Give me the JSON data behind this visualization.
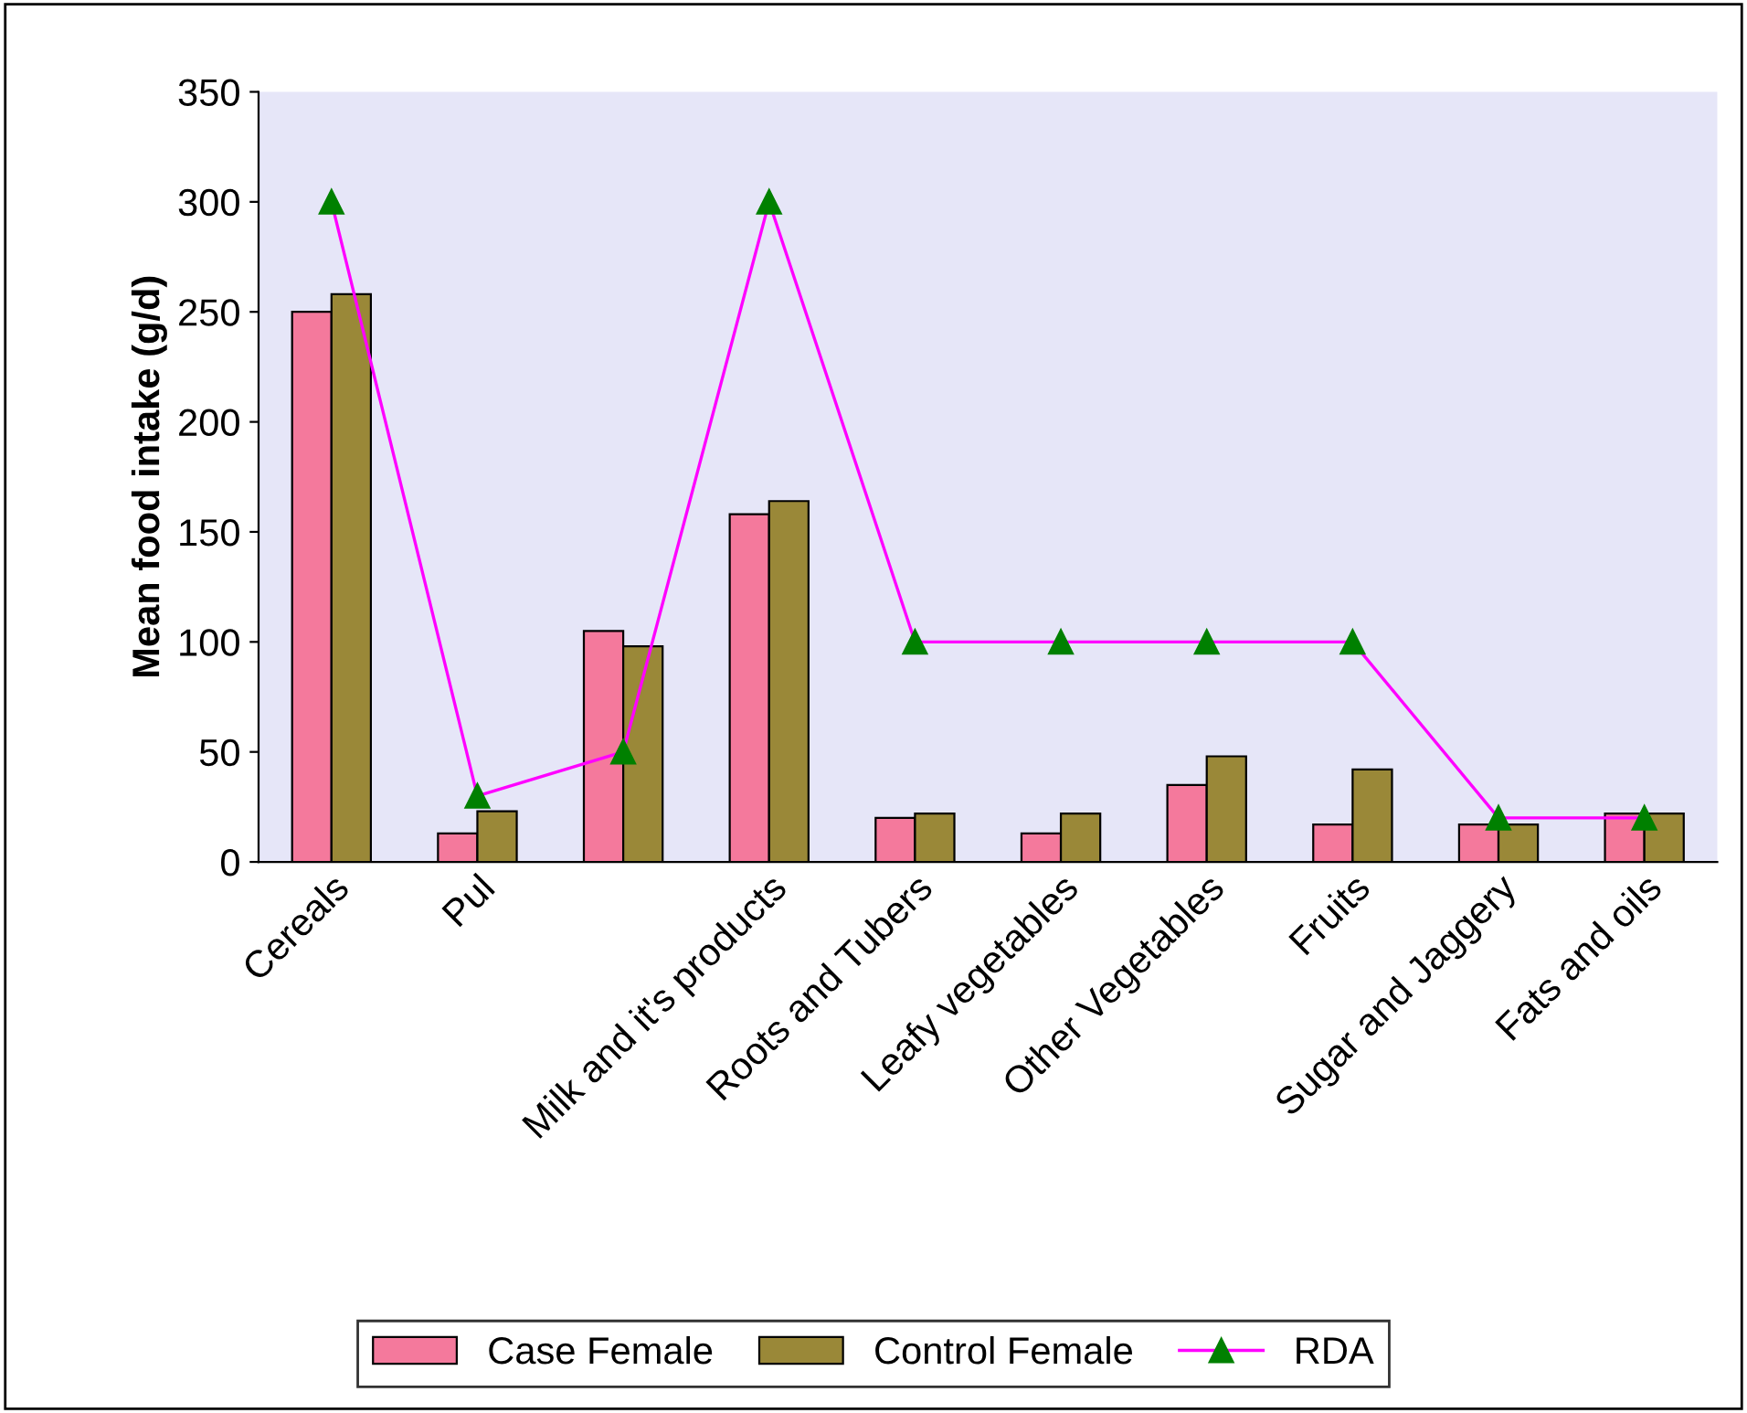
{
  "chart_data": {
    "type": "bar",
    "ylabel": "Mean food intake (g/d)",
    "categories": [
      "Cereals",
      "Pul",
      null,
      "Milk and it's products",
      "Roots and Tubers",
      "Leafy vegetables",
      "Other Vegetables",
      "Fruits",
      "Sugar and Jaggery",
      "Fats and oils"
    ],
    "series": [
      {
        "name": "Case Female",
        "color": "#f4799c",
        "values": [
          250,
          13,
          105,
          158,
          20,
          13,
          35,
          17,
          17,
          22
        ]
      },
      {
        "name": "Control Female",
        "color": "#9a8838",
        "values": [
          258,
          23,
          98,
          164,
          22,
          22,
          48,
          42,
          17,
          22
        ]
      },
      {
        "name": "RDA",
        "type": "line",
        "color": "#ff00ff",
        "marker": "triangle",
        "values": [
          300,
          30,
          50,
          300,
          100,
          100,
          100,
          100,
          20,
          20
        ]
      }
    ],
    "ylim": [
      0,
      350
    ],
    "yticks": [
      0,
      50,
      100,
      150,
      200,
      250,
      300,
      350
    ],
    "grid": false,
    "legend": "bottom"
  }
}
